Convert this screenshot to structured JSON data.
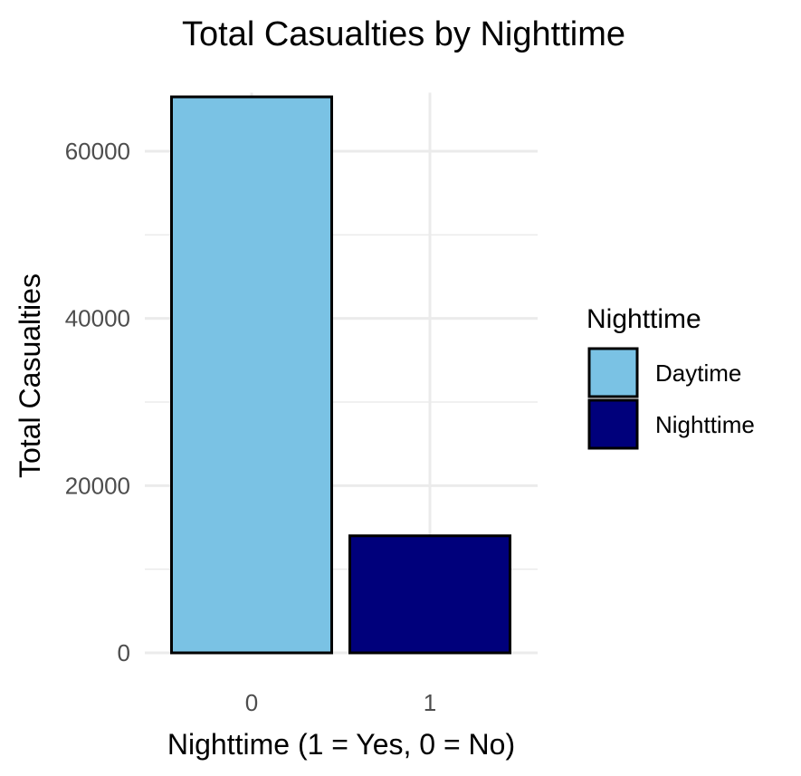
{
  "chart_data": {
    "type": "bar",
    "title": "Total Casualties by Nighttime",
    "xlabel": "Nighttime (1 = Yes, 0 = No)",
    "ylabel": "Total Casualties",
    "categories": [
      "0",
      "1"
    ],
    "values": [
      66500,
      14000
    ],
    "ylim": [
      0,
      67000
    ],
    "yticks": [
      0,
      20000,
      40000,
      60000
    ],
    "yticks_minor": [
      10000,
      30000,
      50000
    ],
    "grid": true,
    "legend": {
      "title": "Nighttime",
      "placement": "right",
      "entries": [
        {
          "label": "Daytime",
          "color": "#7AC2E4"
        },
        {
          "label": "Nighttime",
          "color": "#00007B"
        }
      ]
    },
    "bar_colors": [
      "#7AC2E4",
      "#00007B"
    ],
    "bar_border_color": "#000000",
    "grid_color": "#EBEBEB"
  }
}
